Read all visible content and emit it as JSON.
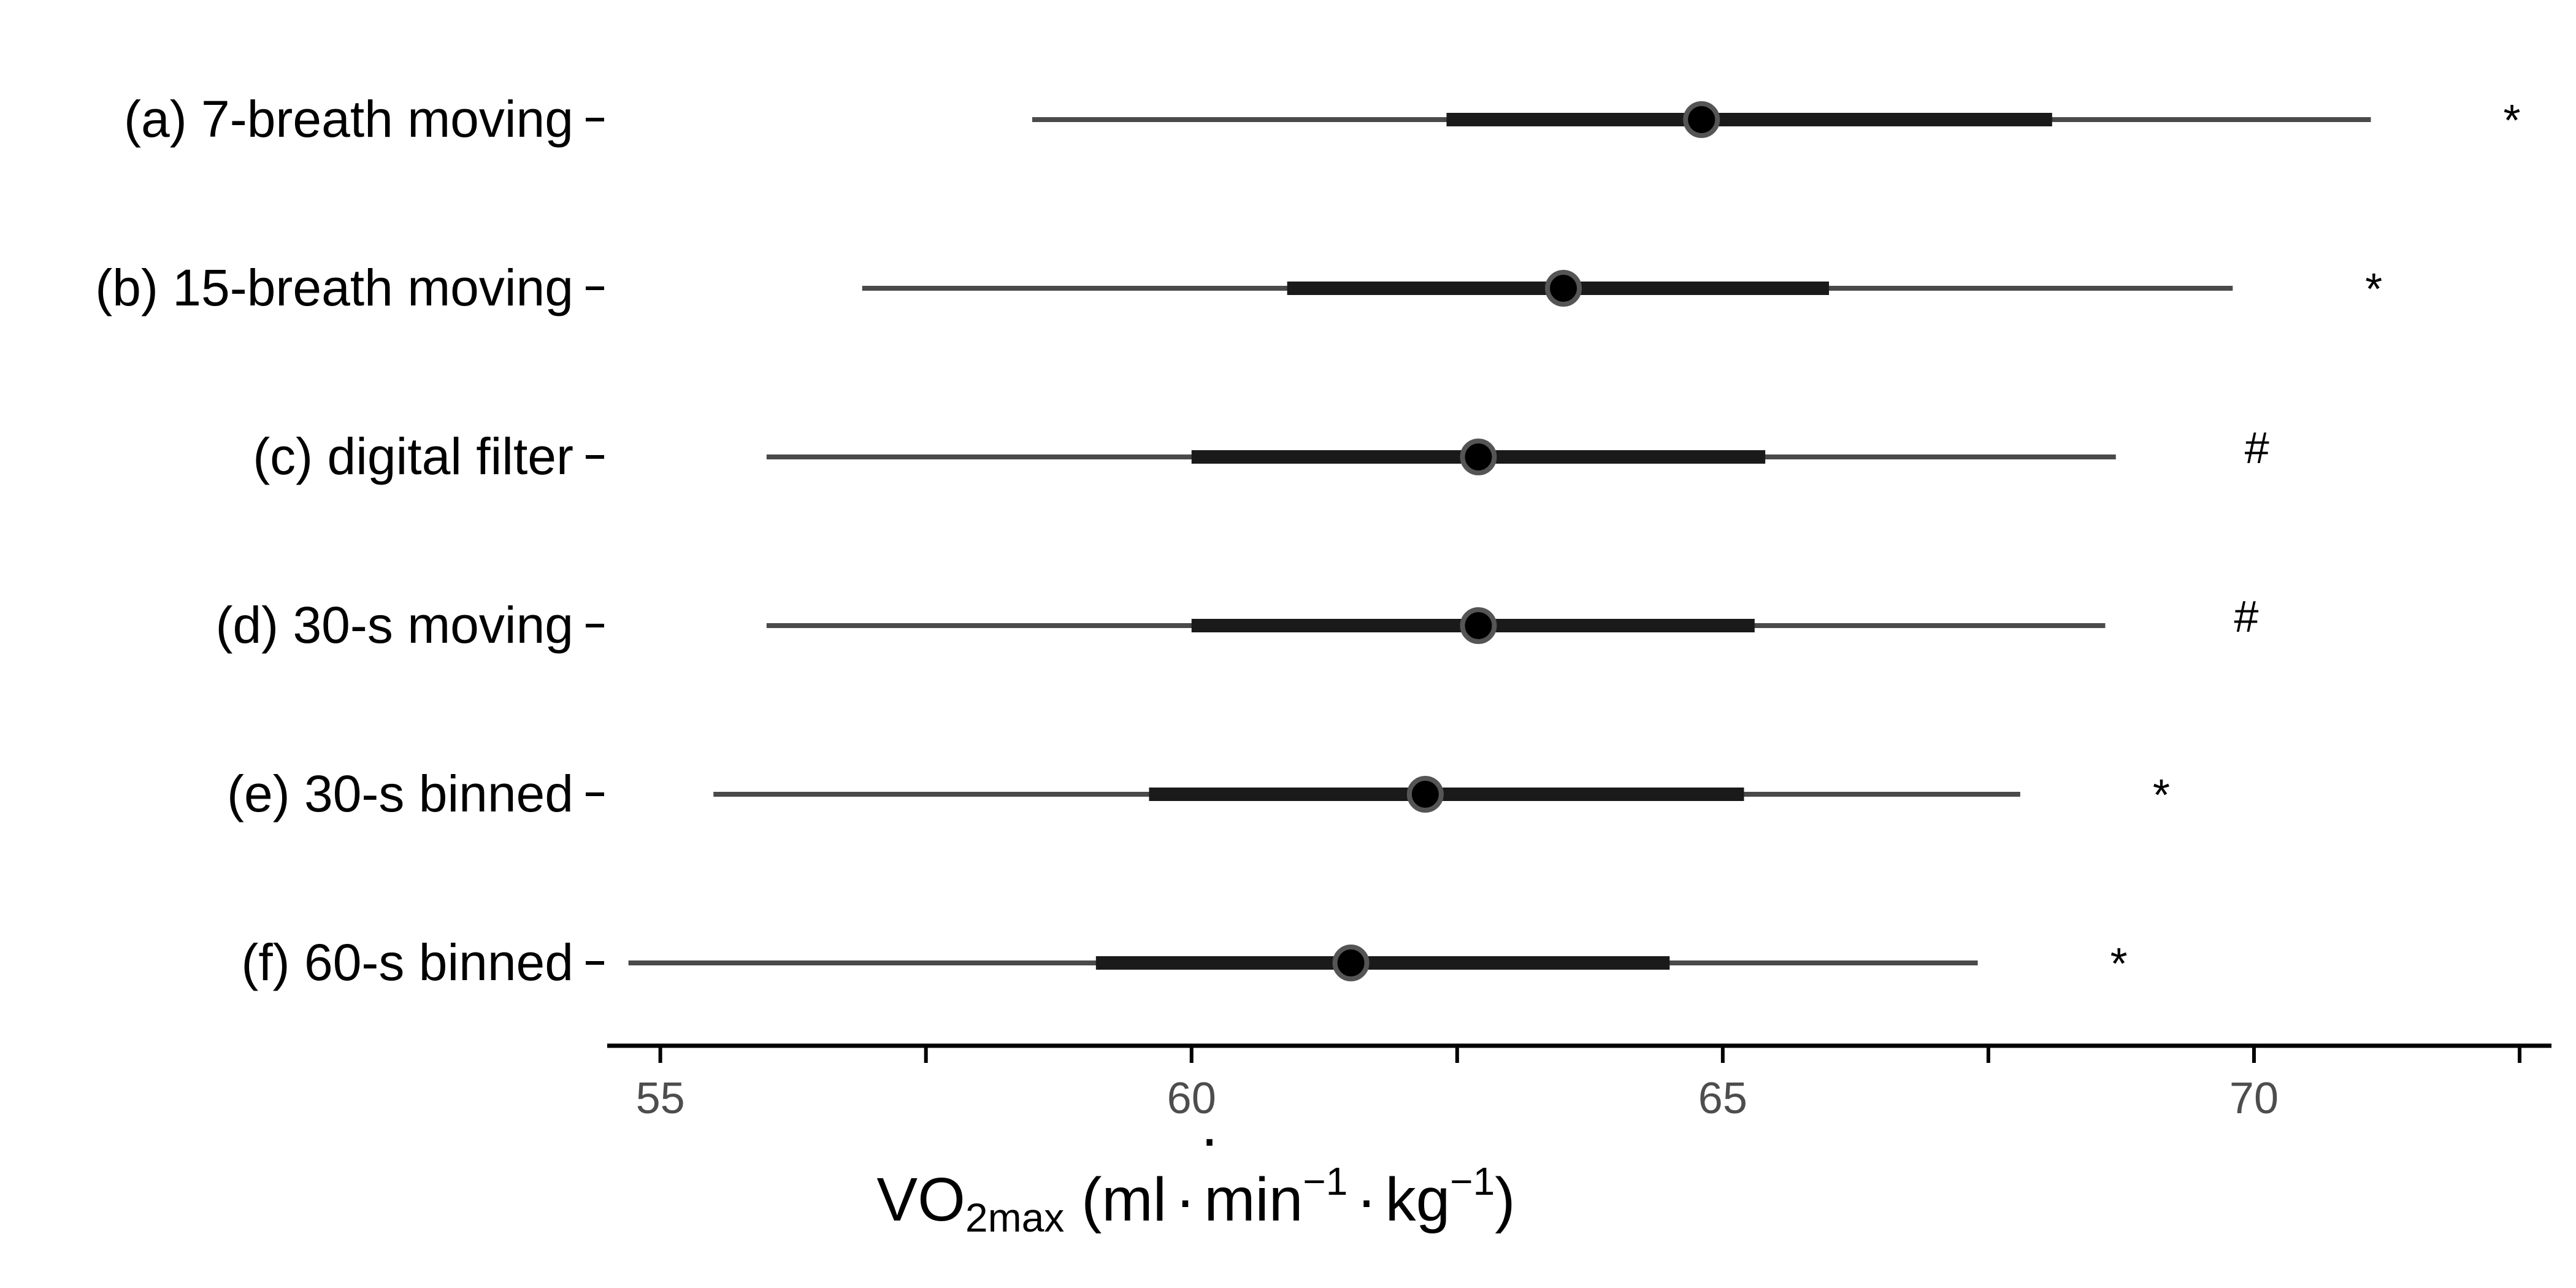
{
  "chart_data": {
    "type": "interval",
    "categories": [
      "(a) 7-breath moving",
      "(b) 15-breath moving",
      "(c) digital filter",
      "(d) 30-s moving",
      "(e) 30-s binned",
      "(f) 60-s binned"
    ],
    "points": [
      {
        "category": "(a) 7-breath moving",
        "median": 64.8,
        "inner": [
          62.4,
          68.1
        ],
        "outer": [
          58.5,
          71.1
        ],
        "annotation": "*"
      },
      {
        "category": "(b) 15-breath moving",
        "median": 63.5,
        "inner": [
          60.9,
          66.0
        ],
        "outer": [
          56.9,
          69.8
        ],
        "annotation": "*"
      },
      {
        "category": "(c) digital filter",
        "median": 62.7,
        "inner": [
          60.0,
          65.4
        ],
        "outer": [
          56.0,
          68.7
        ],
        "annotation": "#"
      },
      {
        "category": "(d) 30-s moving",
        "median": 62.7,
        "inner": [
          60.0,
          65.3
        ],
        "outer": [
          56.0,
          68.6
        ],
        "annotation": "#"
      },
      {
        "category": "(e) 30-s binned",
        "median": 62.2,
        "inner": [
          59.6,
          65.2
        ],
        "outer": [
          55.5,
          67.8
        ],
        "annotation": "*"
      },
      {
        "category": "(f) 60-s binned",
        "median": 61.5,
        "inner": [
          59.1,
          64.5
        ],
        "outer": [
          54.7,
          67.4
        ],
        "annotation": "*"
      }
    ],
    "xlim": [
      54.5,
      72.8
    ],
    "x_ticks": [
      55,
      57.5,
      60,
      62.5,
      65,
      67.5,
      70,
      72.5
    ],
    "x_tick_labels": [
      "55",
      "",
      "60",
      "",
      "65",
      "",
      "70",
      ""
    ],
    "xlabel": {
      "main": "VO",
      "sub": "2max",
      "units_open": "(ml",
      "units_min": "min",
      "units_kg": "kg",
      "units_close": ")",
      "exp": "−1",
      "dot_operator": "·"
    },
    "grid": false,
    "colors": {
      "outer_line": "#4a4a4a",
      "inner_line": "#1a1a1a",
      "point_fill": "#000000",
      "point_ring": "#555555",
      "axis": "#000000",
      "tick_text": "#4d4d4d"
    }
  }
}
